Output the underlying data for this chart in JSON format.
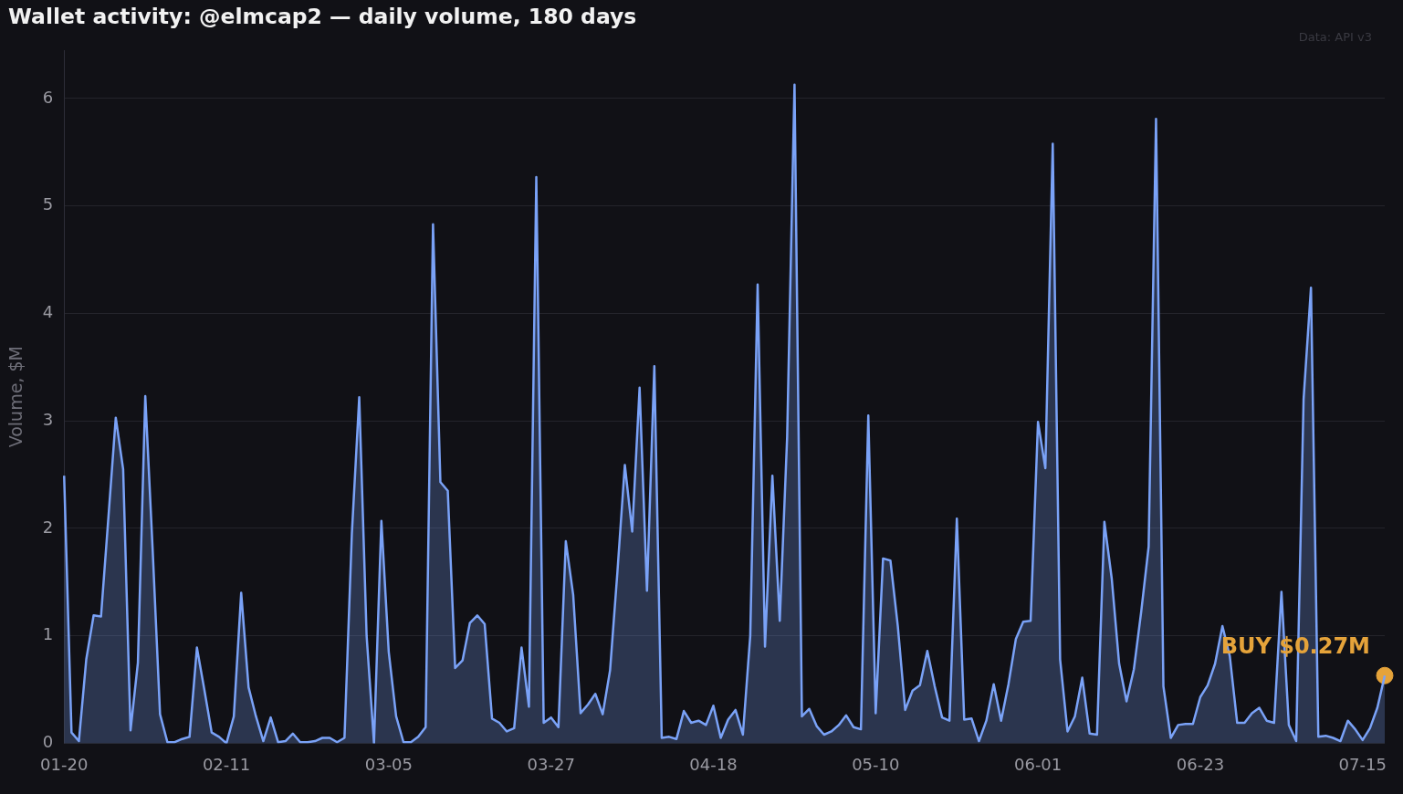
{
  "chart_data": {
    "type": "area",
    "title": "Wallet activity: @elmcap2 — daily volume, 180 days",
    "ylabel": "Volume, $M",
    "annotations": [
      "Data: API v3",
      {
        "text": "BUY $0.27M",
        "y": 0.63
      }
    ],
    "categories": [
      "01-20",
      null,
      null,
      null,
      null,
      null,
      null,
      null,
      null,
      null,
      null,
      null,
      null,
      null,
      null,
      null,
      null,
      null,
      null,
      null,
      null,
      null,
      "02-11",
      null,
      null,
      null,
      null,
      null,
      null,
      null,
      null,
      null,
      null,
      null,
      null,
      null,
      null,
      null,
      null,
      null,
      null,
      null,
      null,
      null,
      "03-05",
      null,
      null,
      null,
      null,
      null,
      null,
      null,
      null,
      null,
      null,
      null,
      null,
      null,
      null,
      null,
      null,
      null,
      null,
      null,
      null,
      null,
      "03-27",
      null,
      null,
      null,
      null,
      null,
      null,
      null,
      null,
      null,
      null,
      null,
      null,
      null,
      null,
      null,
      null,
      null,
      null,
      null,
      null,
      null,
      "04-18",
      null,
      null,
      null,
      null,
      null,
      null,
      null,
      null,
      null,
      null,
      null,
      null,
      null,
      null,
      null,
      null,
      null,
      null,
      null,
      null,
      null,
      "05-10",
      null,
      null,
      null,
      null,
      null,
      null,
      null,
      null,
      null,
      null,
      null,
      null,
      null,
      null,
      null,
      null,
      null,
      null,
      null,
      null,
      null,
      "06-01",
      null,
      null,
      null,
      null,
      null,
      null,
      null,
      null,
      null,
      null,
      null,
      null,
      null,
      null,
      null,
      null,
      null,
      null,
      null,
      null,
      null,
      "06-23",
      null,
      null,
      null,
      null,
      null,
      null,
      null,
      null,
      null,
      null,
      null,
      null,
      null,
      null,
      null,
      null,
      null,
      null,
      null,
      null,
      null,
      "07-15",
      null,
      null,
      null
    ],
    "series": [
      {
        "color": "#7aa2f7",
        "values": [
          2.49,
          0.1,
          0.02,
          0.78,
          1.19,
          1.18,
          2.1,
          3.03,
          2.55,
          0.12,
          0.75,
          3.23,
          1.8,
          0.27,
          0.01,
          0.01,
          0.04,
          0.06,
          0.89,
          0.5,
          0.1,
          0.06,
          0.0,
          0.25,
          1.4,
          0.52,
          0.25,
          0.02,
          0.24,
          0.01,
          0.02,
          0.09,
          0.01,
          0.01,
          0.02,
          0.05,
          0.05,
          0.01,
          0.05,
          1.95,
          3.22,
          1.0,
          0.0,
          2.07,
          0.85,
          0.25,
          0.01,
          0.01,
          0.06,
          0.15,
          4.83,
          2.43,
          2.35,
          0.7,
          0.77,
          1.12,
          1.19,
          1.11,
          0.23,
          0.19,
          0.11,
          0.14,
          0.89,
          0.34,
          5.27,
          0.19,
          0.24,
          0.15,
          1.88,
          1.38,
          0.28,
          0.36,
          0.46,
          0.27,
          0.68,
          1.6,
          2.59,
          1.97,
          3.31,
          1.42,
          3.51,
          0.05,
          0.06,
          0.04,
          0.3,
          0.19,
          0.21,
          0.17,
          0.35,
          0.05,
          0.22,
          0.31,
          0.08,
          1.0,
          4.27,
          0.9,
          2.49,
          1.14,
          2.85,
          6.13,
          0.25,
          0.32,
          0.16,
          0.08,
          0.11,
          0.17,
          0.26,
          0.15,
          0.13,
          3.05,
          0.28,
          1.72,
          1.7,
          1.09,
          0.31,
          0.49,
          0.54,
          0.86,
          0.53,
          0.24,
          0.21,
          2.09,
          0.22,
          0.23,
          0.02,
          0.21,
          0.55,
          0.21,
          0.55,
          0.97,
          1.13,
          1.14,
          2.99,
          2.56,
          5.58,
          0.78,
          0.11,
          0.25,
          0.61,
          0.09,
          0.08,
          2.06,
          1.53,
          0.74,
          0.39,
          0.69,
          1.23,
          1.83,
          5.81,
          0.53,
          0.05,
          0.17,
          0.18,
          0.18,
          0.43,
          0.54,
          0.74,
          1.09,
          0.81,
          0.19,
          0.19,
          0.28,
          0.33,
          0.21,
          0.19,
          1.41,
          0.17,
          0.02,
          3.2,
          4.24,
          0.06,
          0.07,
          0.05,
          0.02,
          0.21,
          0.13,
          0.03,
          0.14,
          0.33,
          0.63
        ]
      },
      {
        "type": "scatter",
        "color": "#e5a33a",
        "marker": "circle",
        "values": [
          null,
          null,
          null,
          null,
          null,
          null,
          null,
          null,
          null,
          null,
          null,
          null,
          null,
          null,
          null,
          null,
          null,
          null,
          null,
          null,
          null,
          null,
          null,
          null,
          null,
          null,
          null,
          null,
          null,
          null,
          null,
          null,
          null,
          null,
          null,
          null,
          null,
          null,
          null,
          null,
          null,
          null,
          null,
          null,
          null,
          null,
          null,
          null,
          null,
          null,
          null,
          null,
          null,
          null,
          null,
          null,
          null,
          null,
          null,
          null,
          null,
          null,
          null,
          null,
          null,
          null,
          null,
          null,
          null,
          null,
          null,
          null,
          null,
          null,
          null,
          null,
          null,
          null,
          null,
          null,
          null,
          null,
          null,
          null,
          null,
          null,
          null,
          null,
          null,
          null,
          null,
          null,
          null,
          null,
          null,
          null,
          null,
          null,
          null,
          null,
          null,
          null,
          null,
          null,
          null,
          null,
          null,
          null,
          null,
          null,
          null,
          null,
          null,
          null,
          null,
          null,
          null,
          null,
          null,
          null,
          null,
          null,
          null,
          null,
          null,
          null,
          null,
          null,
          null,
          null,
          null,
          null,
          null,
          null,
          null,
          null,
          null,
          null,
          null,
          null,
          null,
          null,
          null,
          null,
          null,
          null,
          null,
          null,
          null,
          null,
          null,
          null,
          null,
          null,
          null,
          null,
          null,
          null,
          null,
          null,
          null,
          null,
          null,
          null,
          null,
          null,
          null,
          null,
          null,
          null,
          null,
          null,
          null,
          null,
          null,
          null,
          null,
          null,
          null,
          0.63
        ]
      }
    ],
    "ylim": [
      0,
      6.45
    ],
    "yticks": [
      0,
      1,
      2,
      3,
      4,
      5,
      6
    ],
    "grid": "y",
    "legend": false
  }
}
